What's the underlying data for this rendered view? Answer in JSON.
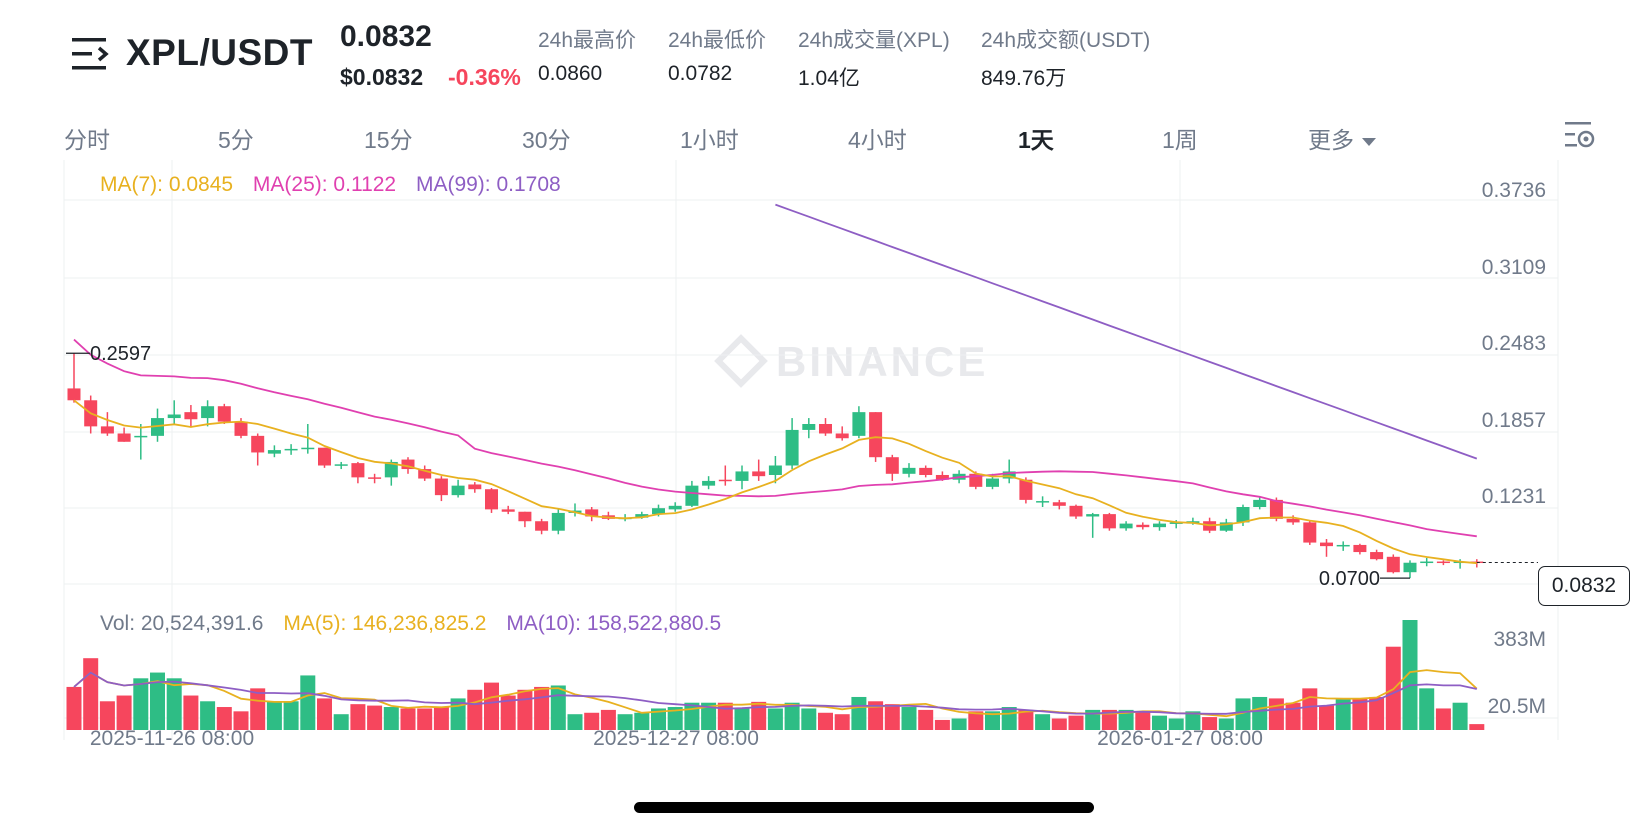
{
  "header": {
    "symbol": "XPL/USDT",
    "last_price": "0.0832",
    "usd_price": "$0.0832",
    "change_pct": "-0.36%",
    "stats": [
      {
        "label": "24h最高价",
        "value": "0.0860"
      },
      {
        "label": "24h最低价",
        "value": "0.0782"
      },
      {
        "label": "24h成交量(XPL)",
        "value": "1.04亿"
      },
      {
        "label": "24h成交额(USDT)",
        "value": "849.76万"
      }
    ]
  },
  "tabs": [
    {
      "label": "分时",
      "active": false
    },
    {
      "label": "5分",
      "active": false
    },
    {
      "label": "15分",
      "active": false
    },
    {
      "label": "30分",
      "active": false
    },
    {
      "label": "1小时",
      "active": false
    },
    {
      "label": "4小时",
      "active": false
    },
    {
      "label": "1天",
      "active": true
    },
    {
      "label": "1周",
      "active": false
    },
    {
      "label": "更多",
      "active": false,
      "dropdown": true
    }
  ],
  "indicators": {
    "ma7": "MA(7): 0.0845",
    "ma25": "MA(25): 0.1122",
    "ma99": "MA(99): 0.1708",
    "vol": "Vol: 20,524,391.6",
    "vol_ma5": "MA(5): 146,236,825.2",
    "vol_ma10": "MA(10): 158,522,880.5"
  },
  "watermark": "BINANCE",
  "colors": {
    "up": "#2ebd85",
    "down": "#f6465d",
    "ma7": "#e8b120",
    "ma25": "#e040b0",
    "ma99": "#8e5ec4",
    "grid": "#eef0f2"
  },
  "chart_data": {
    "type": "candlestick",
    "interval": "1天",
    "price_axis": [
      "0.3736",
      "0.3109",
      "0.2483",
      "0.1857",
      "0.1231"
    ],
    "volume_axis": [
      "383M",
      "20.5M"
    ],
    "x_ticks": [
      "2025-11-26 08:00",
      "2025-12-27 08:00",
      "2026-01-27 08:00"
    ],
    "current_price": "0.0832",
    "high_marker": "0.2597",
    "low_marker": "0.0700",
    "price_range": [
      0.06,
      0.41
    ],
    "volume_max": 383,
    "candles": [
      {
        "o": 0.23,
        "h": 0.2597,
        "l": 0.218,
        "c": 0.22,
        "v": 150
      },
      {
        "o": 0.22,
        "h": 0.224,
        "l": 0.192,
        "c": 0.198,
        "v": 250
      },
      {
        "o": 0.198,
        "h": 0.21,
        "l": 0.19,
        "c": 0.192,
        "v": 100
      },
      {
        "o": 0.192,
        "h": 0.197,
        "l": 0.185,
        "c": 0.185,
        "v": 120
      },
      {
        "o": 0.189,
        "h": 0.2,
        "l": 0.17,
        "c": 0.19,
        "v": 180
      },
      {
        "o": 0.19,
        "h": 0.213,
        "l": 0.185,
        "c": 0.205,
        "v": 200
      },
      {
        "o": 0.205,
        "h": 0.22,
        "l": 0.2,
        "c": 0.208,
        "v": 180
      },
      {
        "o": 0.21,
        "h": 0.216,
        "l": 0.197,
        "c": 0.204,
        "v": 120
      },
      {
        "o": 0.205,
        "h": 0.22,
        "l": 0.198,
        "c": 0.215,
        "v": 100
      },
      {
        "o": 0.215,
        "h": 0.217,
        "l": 0.2,
        "c": 0.202,
        "v": 80
      },
      {
        "o": 0.202,
        "h": 0.205,
        "l": 0.188,
        "c": 0.19,
        "v": 65
      },
      {
        "o": 0.19,
        "h": 0.192,
        "l": 0.165,
        "c": 0.176,
        "v": 145
      },
      {
        "o": 0.175,
        "h": 0.182,
        "l": 0.172,
        "c": 0.178,
        "v": 100
      },
      {
        "o": 0.178,
        "h": 0.183,
        "l": 0.174,
        "c": 0.179,
        "v": 100
      },
      {
        "o": 0.179,
        "h": 0.2,
        "l": 0.175,
        "c": 0.18,
        "v": 190
      },
      {
        "o": 0.18,
        "h": 0.18,
        "l": 0.163,
        "c": 0.165,
        "v": 110
      },
      {
        "o": 0.165,
        "h": 0.168,
        "l": 0.162,
        "c": 0.166,
        "v": 55
      },
      {
        "o": 0.167,
        "h": 0.168,
        "l": 0.15,
        "c": 0.155,
        "v": 90
      },
      {
        "o": 0.155,
        "h": 0.158,
        "l": 0.15,
        "c": 0.154,
        "v": 85
      },
      {
        "o": 0.155,
        "h": 0.17,
        "l": 0.148,
        "c": 0.168,
        "v": 80
      },
      {
        "o": 0.17,
        "h": 0.172,
        "l": 0.158,
        "c": 0.162,
        "v": 75
      },
      {
        "o": 0.162,
        "h": 0.165,
        "l": 0.152,
        "c": 0.154,
        "v": 75
      },
      {
        "o": 0.154,
        "h": 0.156,
        "l": 0.135,
        "c": 0.14,
        "v": 80
      },
      {
        "o": 0.14,
        "h": 0.153,
        "l": 0.138,
        "c": 0.148,
        "v": 110
      },
      {
        "o": 0.149,
        "h": 0.151,
        "l": 0.142,
        "c": 0.145,
        "v": 140
      },
      {
        "o": 0.145,
        "h": 0.146,
        "l": 0.125,
        "c": 0.128,
        "v": 165
      },
      {
        "o": 0.128,
        "h": 0.131,
        "l": 0.124,
        "c": 0.126,
        "v": 120
      },
      {
        "o": 0.126,
        "h": 0.126,
        "l": 0.113,
        "c": 0.118,
        "v": 140
      },
      {
        "o": 0.118,
        "h": 0.12,
        "l": 0.107,
        "c": 0.11,
        "v": 150
      },
      {
        "o": 0.11,
        "h": 0.128,
        "l": 0.107,
        "c": 0.125,
        "v": 155
      },
      {
        "o": 0.125,
        "h": 0.133,
        "l": 0.122,
        "c": 0.127,
        "v": 55
      },
      {
        "o": 0.128,
        "h": 0.13,
        "l": 0.118,
        "c": 0.122,
        "v": 60
      },
      {
        "o": 0.123,
        "h": 0.126,
        "l": 0.119,
        "c": 0.12,
        "v": 70
      },
      {
        "o": 0.12,
        "h": 0.124,
        "l": 0.118,
        "c": 0.121,
        "v": 55
      },
      {
        "o": 0.121,
        "h": 0.126,
        "l": 0.12,
        "c": 0.124,
        "v": 60
      },
      {
        "o": 0.124,
        "h": 0.132,
        "l": 0.122,
        "c": 0.129,
        "v": 75
      },
      {
        "o": 0.128,
        "h": 0.134,
        "l": 0.126,
        "c": 0.131,
        "v": 80
      },
      {
        "o": 0.131,
        "h": 0.152,
        "l": 0.13,
        "c": 0.148,
        "v": 95
      },
      {
        "o": 0.148,
        "h": 0.156,
        "l": 0.145,
        "c": 0.152,
        "v": 95
      },
      {
        "o": 0.153,
        "h": 0.165,
        "l": 0.148,
        "c": 0.152,
        "v": 95
      },
      {
        "o": 0.152,
        "h": 0.165,
        "l": 0.145,
        "c": 0.16,
        "v": 75
      },
      {
        "o": 0.16,
        "h": 0.17,
        "l": 0.152,
        "c": 0.156,
        "v": 98
      },
      {
        "o": 0.157,
        "h": 0.173,
        "l": 0.15,
        "c": 0.165,
        "v": 75
      },
      {
        "o": 0.165,
        "h": 0.205,
        "l": 0.162,
        "c": 0.195,
        "v": 95
      },
      {
        "o": 0.195,
        "h": 0.205,
        "l": 0.188,
        "c": 0.2,
        "v": 75
      },
      {
        "o": 0.2,
        "h": 0.205,
        "l": 0.19,
        "c": 0.192,
        "v": 60
      },
      {
        "o": 0.192,
        "h": 0.198,
        "l": 0.186,
        "c": 0.188,
        "v": 55
      },
      {
        "o": 0.19,
        "h": 0.215,
        "l": 0.188,
        "c": 0.21,
        "v": 115
      },
      {
        "o": 0.21,
        "h": 0.21,
        "l": 0.168,
        "c": 0.172,
        "v": 100
      },
      {
        "o": 0.172,
        "h": 0.174,
        "l": 0.152,
        "c": 0.158,
        "v": 90
      },
      {
        "o": 0.158,
        "h": 0.167,
        "l": 0.155,
        "c": 0.163,
        "v": 80
      },
      {
        "o": 0.163,
        "h": 0.165,
        "l": 0.155,
        "c": 0.157,
        "v": 70
      },
      {
        "o": 0.157,
        "h": 0.16,
        "l": 0.152,
        "c": 0.153,
        "v": 35
      },
      {
        "o": 0.153,
        "h": 0.161,
        "l": 0.15,
        "c": 0.158,
        "v": 40
      },
      {
        "o": 0.158,
        "h": 0.16,
        "l": 0.145,
        "c": 0.147,
        "v": 65
      },
      {
        "o": 0.147,
        "h": 0.158,
        "l": 0.145,
        "c": 0.154,
        "v": 65
      },
      {
        "o": 0.154,
        "h": 0.17,
        "l": 0.15,
        "c": 0.16,
        "v": 80
      },
      {
        "o": 0.153,
        "h": 0.155,
        "l": 0.133,
        "c": 0.136,
        "v": 70
      },
      {
        "o": 0.135,
        "h": 0.139,
        "l": 0.13,
        "c": 0.135,
        "v": 55
      },
      {
        "o": 0.134,
        "h": 0.136,
        "l": 0.128,
        "c": 0.131,
        "v": 40
      },
      {
        "o": 0.131,
        "h": 0.132,
        "l": 0.12,
        "c": 0.122,
        "v": 50
      },
      {
        "o": 0.122,
        "h": 0.125,
        "l": 0.104,
        "c": 0.124,
        "v": 70
      },
      {
        "o": 0.124,
        "h": 0.125,
        "l": 0.11,
        "c": 0.112,
        "v": 70
      },
      {
        "o": 0.112,
        "h": 0.118,
        "l": 0.11,
        "c": 0.116,
        "v": 70
      },
      {
        "o": 0.115,
        "h": 0.117,
        "l": 0.111,
        "c": 0.113,
        "v": 65
      },
      {
        "o": 0.113,
        "h": 0.118,
        "l": 0.11,
        "c": 0.116,
        "v": 50
      },
      {
        "o": 0.116,
        "h": 0.119,
        "l": 0.112,
        "c": 0.117,
        "v": 40
      },
      {
        "o": 0.116,
        "h": 0.121,
        "l": 0.115,
        "c": 0.118,
        "v": 65
      },
      {
        "o": 0.118,
        "h": 0.121,
        "l": 0.108,
        "c": 0.11,
        "v": 45
      },
      {
        "o": 0.11,
        "h": 0.12,
        "l": 0.109,
        "c": 0.117,
        "v": 40
      },
      {
        "o": 0.117,
        "h": 0.132,
        "l": 0.114,
        "c": 0.13,
        "v": 110
      },
      {
        "o": 0.13,
        "h": 0.138,
        "l": 0.128,
        "c": 0.136,
        "v": 115
      },
      {
        "o": 0.136,
        "h": 0.138,
        "l": 0.118,
        "c": 0.12,
        "v": 110
      },
      {
        "o": 0.12,
        "h": 0.123,
        "l": 0.115,
        "c": 0.117,
        "v": 95
      },
      {
        "o": 0.117,
        "h": 0.118,
        "l": 0.098,
        "c": 0.1,
        "v": 145
      },
      {
        "o": 0.1,
        "h": 0.103,
        "l": 0.088,
        "c": 0.097,
        "v": 85
      },
      {
        "o": 0.097,
        "h": 0.101,
        "l": 0.093,
        "c": 0.098,
        "v": 110
      },
      {
        "o": 0.098,
        "h": 0.099,
        "l": 0.09,
        "c": 0.092,
        "v": 110
      },
      {
        "o": 0.092,
        "h": 0.094,
        "l": 0.085,
        "c": 0.086,
        "v": 115
      },
      {
        "o": 0.088,
        "h": 0.09,
        "l": 0.074,
        "c": 0.075,
        "v": 290
      },
      {
        "o": 0.075,
        "h": 0.085,
        "l": 0.07,
        "c": 0.083,
        "v": 383
      },
      {
        "o": 0.083,
        "h": 0.087,
        "l": 0.08,
        "c": 0.084,
        "v": 145
      },
      {
        "o": 0.084,
        "h": 0.085,
        "l": 0.081,
        "c": 0.083,
        "v": 75
      },
      {
        "o": 0.083,
        "h": 0.086,
        "l": 0.078,
        "c": 0.084,
        "v": 95
      },
      {
        "o": 0.084,
        "h": 0.086,
        "l": 0.079,
        "c": 0.0832,
        "v": 20.5
      }
    ]
  }
}
